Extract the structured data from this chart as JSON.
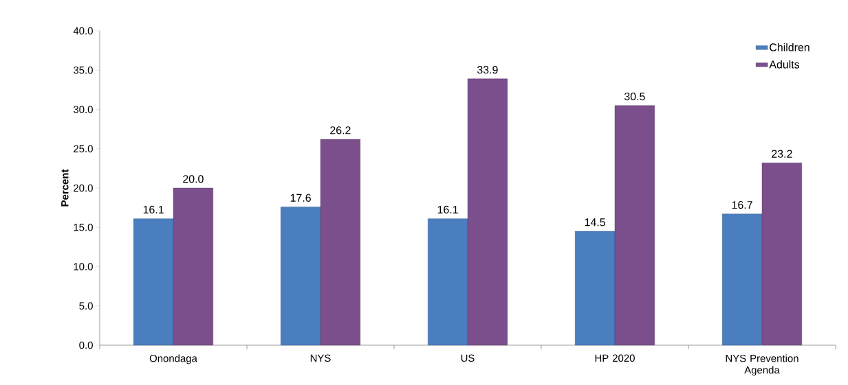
{
  "chart_data": {
    "type": "bar",
    "ylabel": "Percent",
    "categories": [
      "Onondaga",
      "NYS",
      "US",
      "HP 2020",
      "NYS Prevention Agenda"
    ],
    "series": [
      {
        "name": "Children",
        "color": "#4a7ebf",
        "values": [
          16.1,
          17.6,
          16.1,
          14.5,
          16.7
        ],
        "value_labels": [
          "16.1",
          "17.6",
          "16.1",
          "14.5",
          "16.7"
        ]
      },
      {
        "name": "Adults",
        "color": "#7b4f8c",
        "values": [
          20.0,
          26.2,
          33.9,
          30.5,
          23.2
        ],
        "value_labels": [
          "20.0",
          "26.2",
          "33.9",
          "30.5",
          "23.2"
        ]
      }
    ],
    "ylim": [
      0,
      40
    ],
    "yticks": [
      {
        "value": 0,
        "label": "0.0"
      },
      {
        "value": 5,
        "label": "5.0"
      },
      {
        "value": 10,
        "label": "10.0"
      },
      {
        "value": 15,
        "label": "15.0"
      },
      {
        "value": 20,
        "label": "20.0"
      },
      {
        "value": 25,
        "label": "25.0"
      },
      {
        "value": 30,
        "label": "30.0"
      },
      {
        "value": 35,
        "label": "35.0"
      },
      {
        "value": 40,
        "label": "40.0"
      }
    ],
    "grid": false,
    "legend": "top right"
  }
}
